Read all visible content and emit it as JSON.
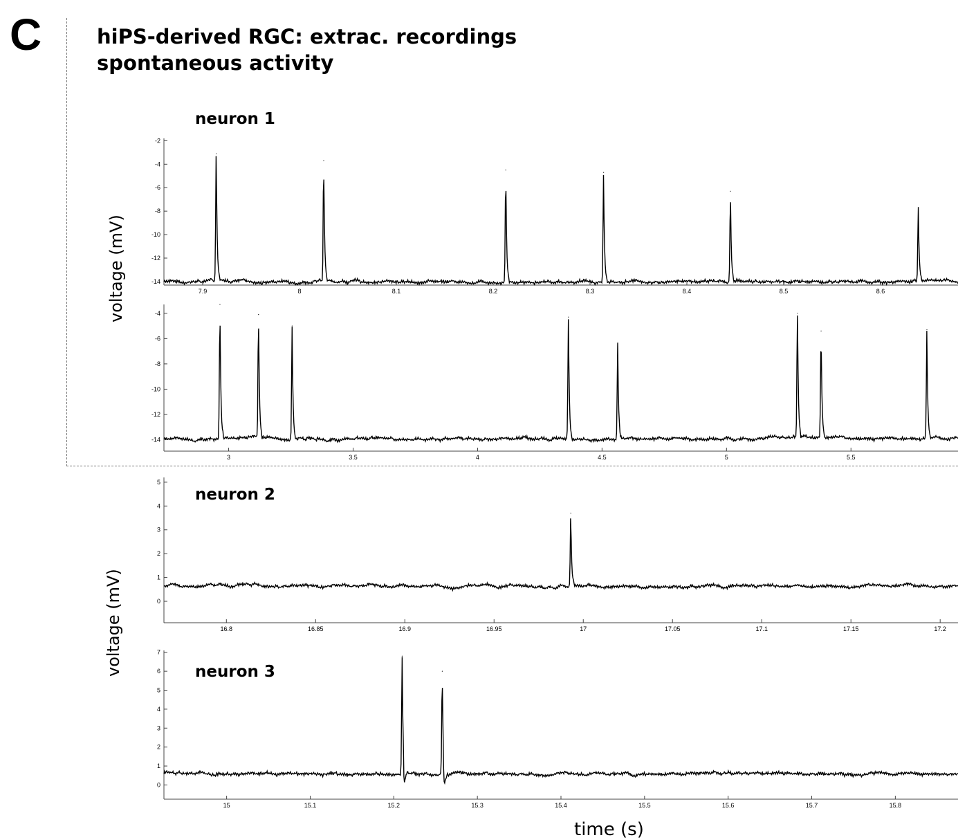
{
  "panel_letter": "C",
  "title_line1": "hiPS-derived RGC: extrac. recordings",
  "title_line2": "spontaneous activity",
  "neuron_labels": [
    "neuron 1",
    "neuron 2",
    "neuron 3"
  ],
  "ylabel_top": "voltage (mV)",
  "ylabel_bottom": "voltage (mV)",
  "xlabel": "time (s)",
  "chart_data": [
    {
      "type": "line",
      "title": "",
      "xlabel": "",
      "ylabel": "voltage (mV)",
      "xlim": [
        7.86,
        8.68
      ],
      "ylim": [
        -14.3,
        -1.8
      ],
      "x_ticks": [
        7.9,
        8,
        8.1,
        8.2,
        8.3,
        8.4,
        8.5,
        8.6
      ],
      "x_tick_labels": [
        "7.9",
        "8",
        "8.1",
        "8.2",
        "8.3",
        "8.4",
        "8.5",
        "8.6"
      ],
      "y_ticks": [
        -2,
        -4,
        -6,
        -8,
        -10,
        -12,
        -14
      ],
      "baseline": -14,
      "spike_times": [
        7.914,
        8.025,
        8.213,
        8.314,
        8.445,
        8.639
      ],
      "spike_peaks": [
        -3.1,
        -3.7,
        -4.5,
        -4.7,
        -6.3,
        -7.7
      ]
    },
    {
      "type": "line",
      "title": "",
      "xlabel": "",
      "ylabel": "voltage (mV)",
      "xlim": [
        2.74,
        5.93
      ],
      "ylim": [
        -14.9,
        -3.3
      ],
      "x_ticks": [
        3,
        3.5,
        4,
        4.5,
        5,
        5.5
      ],
      "x_tick_labels": [
        "3",
        "3.5",
        "4",
        "4.5",
        "5",
        "5.5"
      ],
      "y_ticks": [
        -4,
        -6,
        -8,
        -10,
        -12,
        -14
      ],
      "baseline": -13.9,
      "spike_times": [
        2.965,
        3.12,
        3.255,
        4.365,
        4.563,
        5.285,
        5.38,
        5.805
      ],
      "spike_peaks": [
        -3.3,
        -4.1,
        -5.0,
        -4.3,
        -6.3,
        -4.0,
        -5.4,
        -5.3
      ]
    },
    {
      "type": "line",
      "title": "neuron 2",
      "xlabel": "",
      "ylabel": "voltage (mV)",
      "xlim": [
        16.765,
        17.21
      ],
      "ylim": [
        -0.9,
        5.2
      ],
      "x_ticks": [
        16.8,
        16.85,
        16.9,
        16.95,
        17,
        17.05,
        17.1,
        17.15,
        17.2
      ],
      "x_tick_labels": [
        "16.8",
        "16.85",
        "16.9",
        "16.95",
        "17",
        "17.05",
        "17.1",
        "17.15",
        "17.2"
      ],
      "y_ticks": [
        0,
        1,
        2,
        3,
        4,
        5
      ],
      "baseline": 0.65,
      "spike_times": [
        16.993
      ],
      "spike_peaks": [
        3.7
      ]
    },
    {
      "type": "line",
      "title": "neuron 3",
      "xlabel": "time (s)",
      "ylabel": "voltage (mV)",
      "xlim": [
        14.925,
        15.875
      ],
      "ylim": [
        -0.75,
        7.1
      ],
      "x_ticks": [
        15,
        15.1,
        15.2,
        15.3,
        15.4,
        15.5,
        15.6,
        15.7,
        15.8
      ],
      "x_tick_labels": [
        "15",
        "15.1",
        "15.2",
        "15.3",
        "15.4",
        "15.5",
        "15.6",
        "15.7",
        "15.8"
      ],
      "y_ticks": [
        0,
        1,
        2,
        3,
        4,
        5,
        6,
        7
      ],
      "baseline": 0.6,
      "spike_times": [
        15.21,
        15.258
      ],
      "spike_peaks": [
        6.8,
        6.0
      ]
    }
  ]
}
